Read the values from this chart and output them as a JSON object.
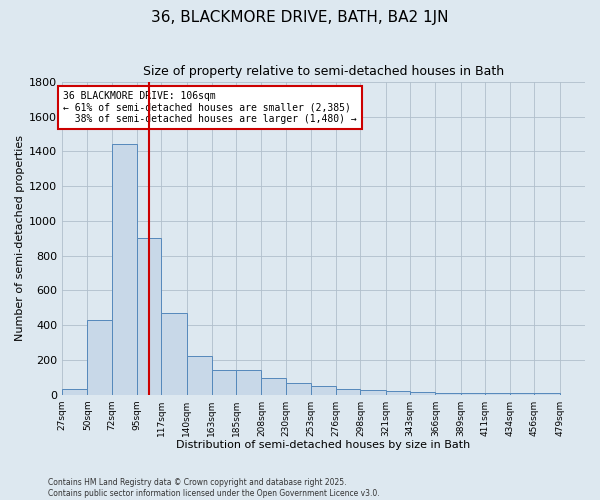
{
  "title": "36, BLACKMORE DRIVE, BATH, BA2 1JN",
  "subtitle": "Size of property relative to semi-detached houses in Bath",
  "xlabel": "Distribution of semi-detached houses by size in Bath",
  "ylabel": "Number of semi-detached properties",
  "bin_labels": [
    "27sqm",
    "50sqm",
    "72sqm",
    "95sqm",
    "117sqm",
    "140sqm",
    "163sqm",
    "185sqm",
    "208sqm",
    "230sqm",
    "253sqm",
    "276sqm",
    "298sqm",
    "321sqm",
    "343sqm",
    "366sqm",
    "389sqm",
    "411sqm",
    "434sqm",
    "456sqm",
    "479sqm"
  ],
  "bin_edges": [
    27,
    50,
    72,
    95,
    117,
    140,
    163,
    185,
    208,
    230,
    253,
    276,
    298,
    321,
    343,
    366,
    389,
    411,
    434,
    456,
    479
  ],
  "bar_heights": [
    30,
    430,
    1440,
    900,
    470,
    225,
    140,
    140,
    95,
    65,
    50,
    35,
    25,
    20,
    15,
    10,
    10,
    10,
    10,
    10
  ],
  "bar_color": "#c8d8e8",
  "bar_edge_color": "#5588bb",
  "property_value": 106,
  "property_label": "36 BLACKMORE DRIVE: 106sqm",
  "pct_smaller": 61,
  "pct_larger": 38,
  "count_smaller": 2385,
  "count_larger": 1480,
  "annotation_box_color": "#ffffff",
  "annotation_box_edge": "#cc0000",
  "vline_color": "#cc0000",
  "ylim": [
    0,
    1800
  ],
  "yticks": [
    0,
    200,
    400,
    600,
    800,
    1000,
    1200,
    1400,
    1600,
    1800
  ],
  "grid_color": "#b0bfcc",
  "bg_color": "#dde8f0",
  "footer1": "Contains HM Land Registry data © Crown copyright and database right 2025.",
  "footer2": "Contains public sector information licensed under the Open Government Licence v3.0.",
  "title_fontsize": 11,
  "subtitle_fontsize": 9
}
